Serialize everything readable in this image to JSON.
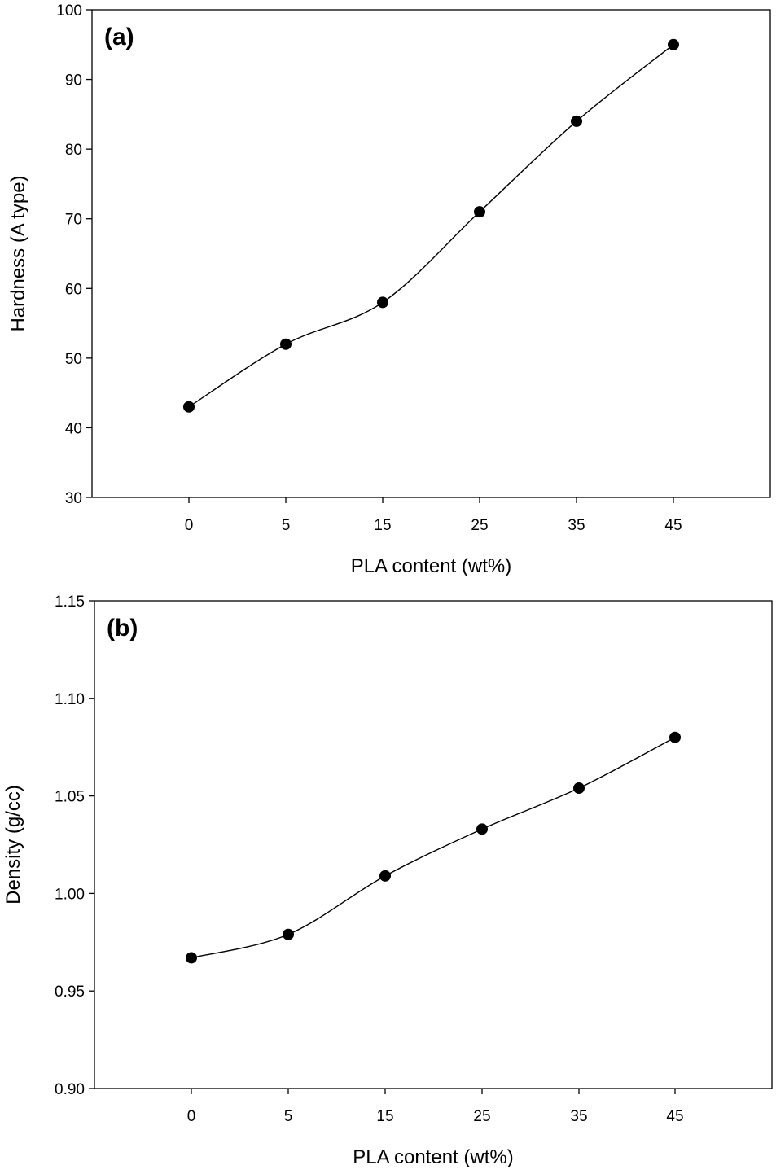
{
  "chart_data": [
    {
      "type": "line",
      "panel_label": "(a)",
      "title": "",
      "xlabel": "PLA content (wt%)",
      "ylabel": "Hardness (A type)",
      "categories": [
        "0",
        "5",
        "15",
        "25",
        "35",
        "45"
      ],
      "values": [
        43,
        52,
        58,
        71,
        84,
        95
      ],
      "ylim": [
        30,
        100
      ],
      "yticks": [
        "30",
        "40",
        "50",
        "60",
        "70",
        "80",
        "90",
        "100"
      ],
      "grid": false,
      "marker": "filled-circle",
      "line": "smooth",
      "color": "#000000"
    },
    {
      "type": "line",
      "panel_label": "(b)",
      "title": "",
      "xlabel": "PLA content (wt%)",
      "ylabel": "Density (g/cc)",
      "categories": [
        "0",
        "5",
        "15",
        "25",
        "35",
        "45"
      ],
      "values": [
        0.967,
        0.979,
        1.009,
        1.033,
        1.054,
        1.08
      ],
      "ylim": [
        0.9,
        1.15
      ],
      "yticks": [
        "0.90",
        "0.95",
        "1.00",
        "1.05",
        "1.10",
        "1.15"
      ],
      "grid": false,
      "marker": "filled-circle",
      "line": "smooth",
      "color": "#000000"
    }
  ]
}
